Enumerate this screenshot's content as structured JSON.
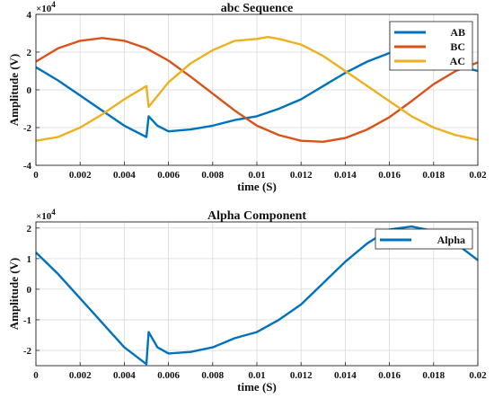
{
  "chart_data": [
    {
      "type": "line",
      "title": "abc Sequence",
      "xlabel": "time (S)",
      "ylabel": "Amplitude (V)",
      "exponent_label": "×10",
      "exponent_power": "4",
      "xlim": [
        0,
        0.02
      ],
      "ylim": [
        -4,
        4
      ],
      "xticks": [
        "0",
        "0.002",
        "0.004",
        "0.006",
        "0.008",
        "0.01",
        "0.012",
        "0.014",
        "0.016",
        "0.018",
        "0.02"
      ],
      "yticks": [
        "-4",
        "-2",
        "0",
        "2",
        "4"
      ],
      "grid": true,
      "legend_position": "top-right",
      "series": [
        {
          "name": "AB",
          "color": "#0072BD",
          "x": [
            0,
            0.001,
            0.002,
            0.003,
            0.004,
            0.005,
            0.0051,
            0.0055,
            0.006,
            0.007,
            0.008,
            0.009,
            0.01,
            0.011,
            0.012,
            0.013,
            0.014,
            0.015,
            0.016,
            0.0165,
            0.017,
            0.018,
            0.019,
            0.02
          ],
          "y": [
            1.2,
            0.5,
            -0.3,
            -1.1,
            -1.9,
            -2.5,
            -1.4,
            -1.9,
            -2.2,
            -2.1,
            -1.9,
            -1.6,
            -1.4,
            -1.0,
            -0.5,
            0.2,
            0.9,
            1.5,
            1.95,
            2.05,
            2.0,
            1.7,
            1.3,
            1.0
          ]
        },
        {
          "name": "BC",
          "color": "#D95319",
          "x": [
            0,
            0.001,
            0.002,
            0.003,
            0.004,
            0.005,
            0.006,
            0.007,
            0.008,
            0.009,
            0.01,
            0.011,
            0.012,
            0.013,
            0.014,
            0.015,
            0.016,
            0.017,
            0.018,
            0.019,
            0.02
          ],
          "y": [
            1.5,
            2.2,
            2.6,
            2.75,
            2.6,
            2.2,
            1.55,
            0.7,
            -0.2,
            -1.1,
            -1.9,
            -2.4,
            -2.7,
            -2.75,
            -2.55,
            -2.1,
            -1.45,
            -0.6,
            0.3,
            1.0,
            1.45
          ]
        },
        {
          "name": "AC",
          "color": "#EDB120",
          "x": [
            0,
            0.001,
            0.002,
            0.003,
            0.004,
            0.005,
            0.0051,
            0.006,
            0.007,
            0.008,
            0.009,
            0.01,
            0.0105,
            0.011,
            0.012,
            0.013,
            0.014,
            0.015,
            0.016,
            0.017,
            0.018,
            0.019,
            0.02
          ],
          "y": [
            -2.7,
            -2.5,
            -2.0,
            -1.3,
            -0.5,
            0.2,
            -0.9,
            0.4,
            1.4,
            2.1,
            2.6,
            2.7,
            2.8,
            2.7,
            2.4,
            1.8,
            1.0,
            0.2,
            -0.6,
            -1.4,
            -2.0,
            -2.4,
            -2.65
          ]
        }
      ]
    },
    {
      "type": "line",
      "title": "Alpha Component",
      "xlabel": "time (S)",
      "ylabel": "Amplitude (V)",
      "exponent_label": "×10",
      "exponent_power": "4",
      "xlim": [
        0,
        0.02
      ],
      "ylim": [
        -2.5,
        2.2
      ],
      "xticks": [
        "0",
        "0.002",
        "0.004",
        "0.006",
        "0.008",
        "0.01",
        "0.012",
        "0.014",
        "0.016",
        "0.018",
        "0.02"
      ],
      "yticks": [
        "-2",
        "-1",
        "0",
        "1",
        "2"
      ],
      "grid": true,
      "legend_position": "top-right",
      "series": [
        {
          "name": "Alpha",
          "color": "#0072BD",
          "x": [
            0,
            0.001,
            0.002,
            0.003,
            0.004,
            0.005,
            0.0051,
            0.0055,
            0.006,
            0.007,
            0.008,
            0.009,
            0.01,
            0.011,
            0.012,
            0.013,
            0.014,
            0.015,
            0.016,
            0.017,
            0.018,
            0.019,
            0.02
          ],
          "y": [
            1.2,
            0.5,
            -0.3,
            -1.1,
            -1.9,
            -2.45,
            -1.4,
            -1.9,
            -2.1,
            -2.05,
            -1.9,
            -1.6,
            -1.4,
            -1.0,
            -0.5,
            0.2,
            0.9,
            1.5,
            1.95,
            2.05,
            1.9,
            1.5,
            0.95
          ]
        }
      ]
    }
  ]
}
